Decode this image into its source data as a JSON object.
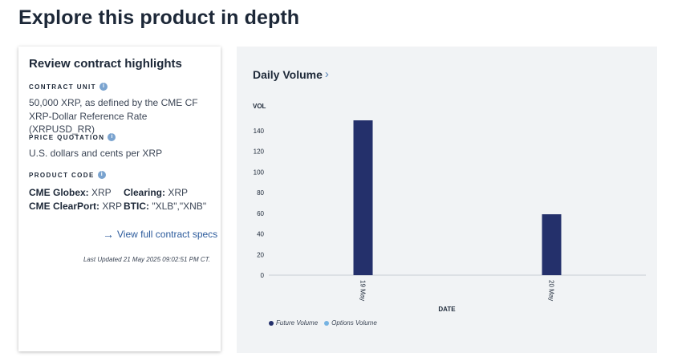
{
  "page": {
    "title": "Explore this product in depth"
  },
  "highlights": {
    "title": "Review contract highlights",
    "contract_unit": {
      "label": "CONTRACT UNIT",
      "value": "50,000 XRP, as defined by the CME CF XRP-Dollar Reference Rate (XRPUSD_RR)"
    },
    "price_quotation": {
      "label": "PRICE QUOTATION",
      "value": "U.S. dollars and cents per XRP"
    },
    "product_code": {
      "label": "PRODUCT CODE",
      "globex_label": "CME Globex:",
      "globex_value": "XRP",
      "clearing_label": "Clearing:",
      "clearing_value": "XRP",
      "clearport_label": "CME ClearPort:",
      "clearport_value": "XRP",
      "btic_label": "BTIC:",
      "btic_value": "\"XLB\",\"XNB\""
    },
    "info_glyph": "i",
    "link_label": "View full contract specs",
    "last_updated": "Last Updated  21 May 2025 09:02:51 PM CT."
  },
  "chart_panel": {
    "title": "Daily Volume",
    "chevron": "›",
    "arrow": "→"
  },
  "colors": {
    "future": "#24306b",
    "options": "#76b3e2",
    "info": "#7aa3cf"
  },
  "chart_data": {
    "type": "bar",
    "title": "Daily Volume",
    "xlabel": "DATE",
    "ylabel": "VOL",
    "categories": [
      "19 May",
      "20 May"
    ],
    "series": [
      {
        "name": "Future Volume",
        "values": [
          150,
          59
        ]
      },
      {
        "name": "Options Volume",
        "values": [
          0,
          0
        ]
      }
    ],
    "yticks": [
      0,
      20,
      40,
      60,
      80,
      100,
      120,
      140
    ],
    "ylim": [
      0,
      150
    ],
    "grid": false,
    "legend": "bottom-left"
  }
}
